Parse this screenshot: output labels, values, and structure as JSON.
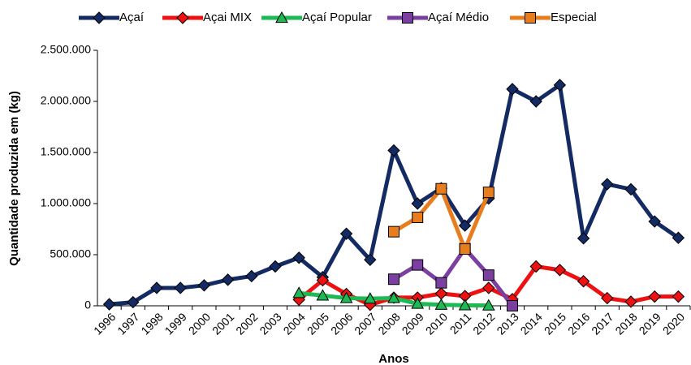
{
  "chart_data": {
    "type": "line",
    "y_label": "Quantidade produzida em (kg)",
    "x_label": "Anos",
    "categories": [
      "1996",
      "1997",
      "1998",
      "1999",
      "2000",
      "2001",
      "2002",
      "2003",
      "2004",
      "2005",
      "2006",
      "2007",
      "2008",
      "2009",
      "2010",
      "2011",
      "2012",
      "2013",
      "2014",
      "2015",
      "2016",
      "2017",
      "2018",
      "2019",
      "2020"
    ],
    "series": [
      {
        "name": "Açaí",
        "color": "#142a63",
        "marker": "diamond",
        "values": [
          15000,
          35000,
          175000,
          175000,
          200000,
          255000,
          290000,
          385000,
          470000,
          280000,
          705000,
          450000,
          1520000,
          1000000,
          1150000,
          785000,
          1050000,
          2120000,
          2000000,
          2160000,
          660000,
          1190000,
          1140000,
          825000,
          665000
        ]
      },
      {
        "name": "Açai MIX",
        "color": "#ee1111",
        "marker": "diamond",
        "values": [
          null,
          null,
          null,
          null,
          null,
          null,
          null,
          null,
          60000,
          250000,
          115000,
          10000,
          80000,
          80000,
          120000,
          95000,
          175000,
          65000,
          385000,
          350000,
          240000,
          75000,
          40000,
          90000,
          90000
        ]
      },
      {
        "name": "Açaí Popular",
        "color": "#1db954",
        "marker": "triangle",
        "values": [
          null,
          null,
          null,
          null,
          null,
          null,
          null,
          null,
          125000,
          100000,
          75000,
          70000,
          75000,
          20000,
          10000,
          5000,
          3000,
          null,
          null,
          null,
          null,
          null,
          null,
          null,
          null
        ]
      },
      {
        "name": "Açaí Médio",
        "color": "#7a3fa0",
        "marker": "square",
        "values": [
          null,
          null,
          null,
          null,
          null,
          null,
          null,
          null,
          null,
          null,
          null,
          null,
          260000,
          400000,
          225000,
          560000,
          300000,
          0,
          null,
          null,
          null,
          null,
          null,
          null,
          null
        ]
      },
      {
        "name": "Especial",
        "color": "#e87d1e",
        "marker": "square",
        "values": [
          null,
          null,
          null,
          null,
          null,
          null,
          null,
          null,
          null,
          null,
          null,
          null,
          725000,
          865000,
          1145000,
          555000,
          1110000,
          null,
          null,
          null,
          null,
          null,
          null,
          null,
          null
        ]
      }
    ],
    "ylim": [
      0,
      2500000
    ],
    "yticks": [
      0,
      {
        "value": 500000,
        "label": "500.000"
      },
      {
        "value": 1000000,
        "label": "1.000.000"
      },
      {
        "value": 1500000,
        "label": "1.500.000"
      },
      {
        "value": 2000000,
        "label": "2.000.000"
      },
      {
        "value": 2500000,
        "label": "2.500.000"
      }
    ],
    "legend": "top"
  }
}
